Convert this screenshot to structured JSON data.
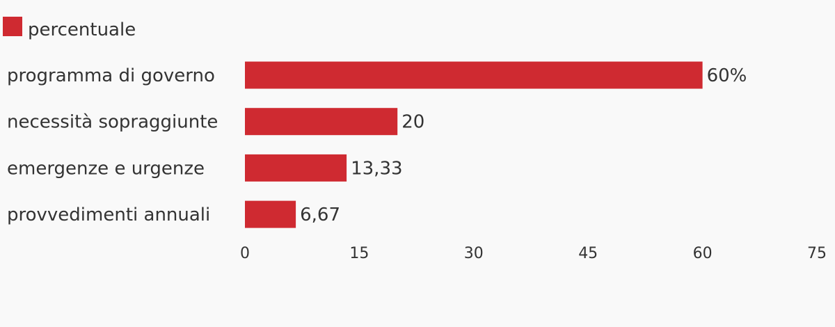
{
  "chart_data": {
    "type": "bar",
    "orientation": "horizontal",
    "categories": [
      "programma di governo",
      "necessità sopraggiunte",
      "emergenze e urgenze",
      "provvedimenti annuali"
    ],
    "series": [
      {
        "name": "percentuale",
        "values": [
          60,
          20,
          13.33,
          6.67
        ],
        "color": "#cf2a31"
      }
    ],
    "value_labels": [
      "60%",
      "20",
      "13,33",
      "6,67"
    ],
    "xlim": [
      0,
      75
    ],
    "xticks": [
      0,
      15,
      30,
      45,
      60,
      75
    ],
    "tick_labels": [
      "0",
      "15",
      "30",
      "45",
      "60",
      "75"
    ],
    "legend_position": "top-left",
    "grid": false
  }
}
